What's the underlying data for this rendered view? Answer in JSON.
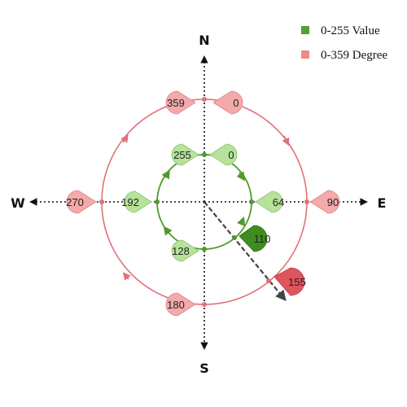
{
  "compass": {
    "north": "N",
    "south": "S",
    "east": "E",
    "west": "W"
  },
  "legend": {
    "items": [
      {
        "label": "0-255 Value",
        "color": "#5b9e2a"
      },
      {
        "label": "0-359 Degree",
        "color": "#ee8a8a"
      }
    ]
  },
  "outer_ring": {
    "color": "#e0707a",
    "labels": {
      "north_right": "0",
      "north_left": "359",
      "east": "90",
      "south": "180",
      "west": "270",
      "highlight": "155"
    }
  },
  "inner_ring": {
    "color": "#4f9a2a",
    "labels": {
      "north_right": "0",
      "north_left": "255",
      "east": "64",
      "south": "128",
      "west": "192",
      "highlight": "110"
    }
  },
  "colors": {
    "pin_red_light": "#f4a9ab",
    "pin_red_dark": "#e0545d",
    "pin_green_light": "#b6e29b",
    "pin_green_dark": "#3e8e1f"
  }
}
